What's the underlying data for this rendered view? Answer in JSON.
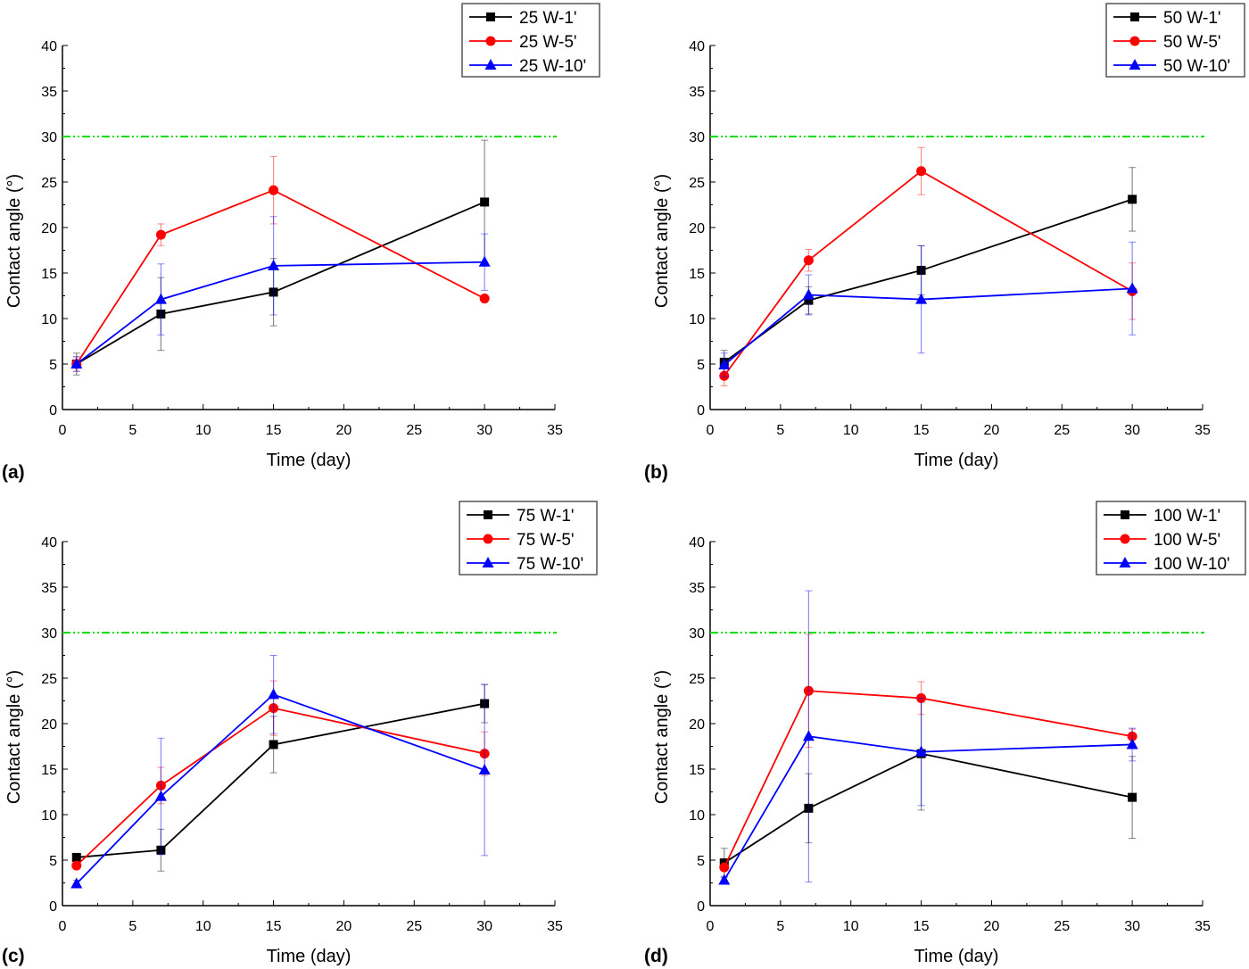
{
  "colors": {
    "black": "#000000",
    "red": "#ff0000",
    "blue": "#0000ff",
    "reference_line": "#00dd00"
  },
  "chart_data": [
    {
      "type": "line",
      "panel_label": "(a)",
      "xlabel": "Time (day)",
      "ylabel": "Contact angle (°)",
      "xlim": [
        0,
        35
      ],
      "ylim": [
        0,
        40
      ],
      "xticks": [
        0,
        5,
        10,
        15,
        20,
        25,
        30,
        35
      ],
      "yticks": [
        0,
        5,
        10,
        15,
        20,
        25,
        30,
        35,
        40
      ],
      "reference_line": 30,
      "legend": "top-right",
      "grid": false,
      "x": [
        1,
        7,
        15,
        30
      ],
      "series": [
        {
          "name": "25 W-1'",
          "color": "#000000",
          "marker": "square",
          "values": [
            5.0,
            10.5,
            12.9,
            22.8
          ],
          "errors": [
            1.2,
            4.0,
            3.7,
            6.8
          ]
        },
        {
          "name": "25 W-5'",
          "color": "#ff0000",
          "marker": "circle",
          "values": [
            5.0,
            19.2,
            24.1,
            12.2
          ],
          "errors": [
            0.8,
            1.2,
            3.7,
            0.3
          ]
        },
        {
          "name": "25 W-10'",
          "color": "#0000ff",
          "marker": "triangle",
          "values": [
            5.0,
            12.1,
            15.8,
            16.2
          ],
          "errors": [
            0.8,
            3.9,
            5.4,
            3.1
          ]
        }
      ]
    },
    {
      "type": "line",
      "panel_label": "(b)",
      "xlabel": "Time (day)",
      "ylabel": "Contact angle (°)",
      "xlim": [
        0,
        35
      ],
      "ylim": [
        0,
        40
      ],
      "xticks": [
        0,
        5,
        10,
        15,
        20,
        25,
        30,
        35
      ],
      "yticks": [
        0,
        5,
        10,
        15,
        20,
        25,
        30,
        35,
        40
      ],
      "reference_line": 30,
      "legend": "top-right",
      "grid": false,
      "x": [
        1,
        7,
        15,
        30
      ],
      "series": [
        {
          "name": "50 W-1'",
          "color": "#000000",
          "marker": "square",
          "values": [
            5.2,
            12.0,
            15.3,
            23.1
          ],
          "errors": [
            1.3,
            1.5,
            2.7,
            3.5
          ]
        },
        {
          "name": "50 W-5'",
          "color": "#ff0000",
          "marker": "circle",
          "values": [
            3.7,
            16.4,
            26.2,
            13.0
          ],
          "errors": [
            1.1,
            1.2,
            2.6,
            3.1
          ]
        },
        {
          "name": "50 W-10'",
          "color": "#0000ff",
          "marker": "triangle",
          "values": [
            4.9,
            12.6,
            12.1,
            13.3
          ],
          "errors": [
            1.3,
            2.2,
            5.9,
            5.1
          ]
        }
      ]
    },
    {
      "type": "line",
      "panel_label": "(c)",
      "xlabel": "Time (day)",
      "ylabel": "Contact angle (°)",
      "xlim": [
        0,
        35
      ],
      "ylim": [
        0,
        40
      ],
      "xticks": [
        0,
        5,
        10,
        15,
        20,
        25,
        30,
        35
      ],
      "yticks": [
        0,
        5,
        10,
        15,
        20,
        25,
        30,
        35,
        40
      ],
      "reference_line": 30,
      "legend": "top-right",
      "grid": false,
      "x": [
        1,
        7,
        15,
        30
      ],
      "series": [
        {
          "name": "75 W-1'",
          "color": "#000000",
          "marker": "square",
          "values": [
            5.3,
            6.1,
            17.7,
            22.2
          ],
          "errors": [
            0.3,
            2.3,
            3.1,
            2.1
          ]
        },
        {
          "name": "75 W-5'",
          "color": "#ff0000",
          "marker": "circle",
          "values": [
            4.4,
            13.2,
            21.7,
            16.7
          ],
          "errors": [
            0.3,
            2.0,
            3.0,
            2.4
          ]
        },
        {
          "name": "75 W-10'",
          "color": "#0000ff",
          "marker": "triangle",
          "values": [
            2.4,
            12.0,
            23.2,
            14.9
          ],
          "errors": [
            0.4,
            6.4,
            4.3,
            9.4
          ]
        }
      ]
    },
    {
      "type": "line",
      "panel_label": "(d)",
      "xlabel": "Time (day)",
      "ylabel": "Contact angle (°)",
      "xlim": [
        0,
        35
      ],
      "ylim": [
        0,
        40
      ],
      "xticks": [
        0,
        5,
        10,
        15,
        20,
        25,
        30,
        35
      ],
      "yticks": [
        0,
        5,
        10,
        15,
        20,
        25,
        30,
        35,
        40
      ],
      "reference_line": 30,
      "legend": "top-right",
      "grid": false,
      "x": [
        1,
        7,
        15,
        30
      ],
      "series": [
        {
          "name": "100 W-1'",
          "color": "#000000",
          "marker": "square",
          "values": [
            4.7,
            10.7,
            16.7,
            11.9
          ],
          "errors": [
            1.6,
            3.8,
            6.2,
            4.5
          ]
        },
        {
          "name": "100 W-5'",
          "color": "#ff0000",
          "marker": "circle",
          "values": [
            4.2,
            23.6,
            22.8,
            18.6
          ],
          "errors": [
            0.3,
            6.2,
            1.8,
            0.8
          ]
        },
        {
          "name": "100 W-10'",
          "color": "#0000ff",
          "marker": "triangle",
          "values": [
            2.8,
            18.6,
            16.9,
            17.7
          ],
          "errors": [
            0.4,
            16.0,
            5.9,
            1.8
          ]
        }
      ]
    }
  ]
}
